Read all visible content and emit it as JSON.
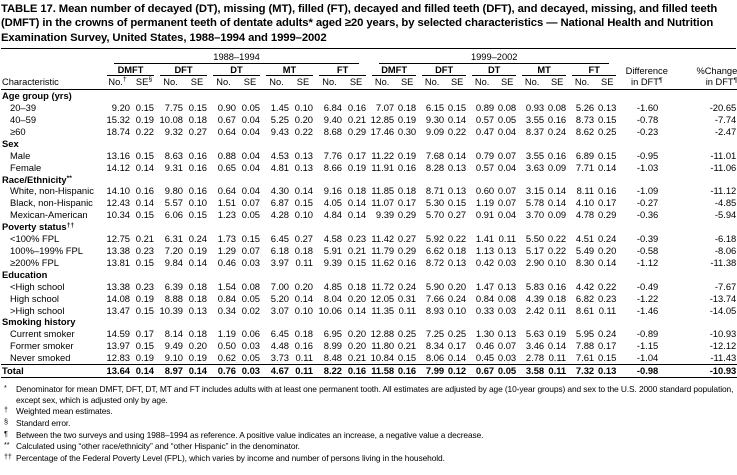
{
  "title": "TABLE 17. Mean number of decayed (DT), missing (MT), filled (FT), decayed and filled teeth (DFT), and decayed, missing, and filled teeth (DMFT) in the crowns of permanent teeth of dentate adults* aged ≥20 years, by selected characteristics — National Health and Nutrition Examination Survey, United States, 1988–1994 and 1999–2002",
  "header": {
    "characteristic": "Characteristic",
    "periods": [
      "1988–1994",
      "1999–2002"
    ],
    "groups": [
      "DMFT",
      "DFT",
      "DT",
      "MT",
      "FT"
    ],
    "no_label": "No.",
    "se_label": "SE",
    "no_sup": "†",
    "se_sup": "§",
    "diff_lines": [
      "Difference",
      "in DFT"
    ],
    "change_lines": [
      "%Change",
      "in DFT"
    ],
    "dft_sup": "¶"
  },
  "sections": [
    {
      "label": "Age group (yrs)",
      "sup": "",
      "rows": [
        {
          "label": "20–39",
          "values": [
            "9.20",
            "0.15",
            "7.75",
            "0.15",
            "0.90",
            "0.05",
            "1.45",
            "0.10",
            "6.84",
            "0.16",
            "7.07",
            "0.18",
            "6.15",
            "0.15",
            "0.89",
            "0.08",
            "0.93",
            "0.08",
            "5.26",
            "0.13",
            "-1.60",
            "-20.65"
          ]
        },
        {
          "label": "40–59",
          "values": [
            "15.32",
            "0.19",
            "10.08",
            "0.18",
            "0.67",
            "0.04",
            "5.25",
            "0.20",
            "9.40",
            "0.21",
            "12.85",
            "0.19",
            "9.30",
            "0.14",
            "0.57",
            "0.05",
            "3.55",
            "0.16",
            "8.73",
            "0.15",
            "-0.78",
            "-7.74"
          ]
        },
        {
          "label": "≥60",
          "values": [
            "18.74",
            "0.22",
            "9.32",
            "0.27",
            "0.64",
            "0.04",
            "9.43",
            "0.22",
            "8.68",
            "0.29",
            "17.46",
            "0.30",
            "9.09",
            "0.22",
            "0.47",
            "0.04",
            "8.37",
            "0.24",
            "8.62",
            "0.25",
            "-0.23",
            "-2.47"
          ]
        }
      ]
    },
    {
      "label": "Sex",
      "sup": "",
      "rows": [
        {
          "label": "Male",
          "values": [
            "13.16",
            "0.15",
            "8.63",
            "0.16",
            "0.88",
            "0.04",
            "4.53",
            "0.13",
            "7.76",
            "0.17",
            "11.22",
            "0.19",
            "7.68",
            "0.14",
            "0.79",
            "0.07",
            "3.55",
            "0.16",
            "6.89",
            "0.15",
            "-0.95",
            "-11.01"
          ]
        },
        {
          "label": "Female",
          "values": [
            "14.12",
            "0.14",
            "9.31",
            "0.16",
            "0.65",
            "0.04",
            "4.81",
            "0.13",
            "8.66",
            "0.19",
            "11.91",
            "0.16",
            "8.28",
            "0.13",
            "0.57",
            "0.04",
            "3.63",
            "0.09",
            "7.71",
            "0.14",
            "-1.03",
            "-11.06"
          ]
        }
      ]
    },
    {
      "label": "Race/Ethnicity",
      "sup": "**",
      "rows": [
        {
          "label": "White, non-Hispanic",
          "values": [
            "14.10",
            "0.16",
            "9.80",
            "0.16",
            "0.64",
            "0.04",
            "4.30",
            "0.14",
            "9.16",
            "0.18",
            "11.85",
            "0.18",
            "8.71",
            "0.13",
            "0.60",
            "0.07",
            "3.15",
            "0.14",
            "8.11",
            "0.16",
            "-1.09",
            "-11.12"
          ]
        },
        {
          "label": "Black, non-Hispanic",
          "values": [
            "12.43",
            "0.14",
            "5.57",
            "0.10",
            "1.51",
            "0.07",
            "6.87",
            "0.15",
            "4.05",
            "0.14",
            "11.07",
            "0.17",
            "5.30",
            "0.15",
            "1.19",
            "0.07",
            "5.78",
            "0.14",
            "4.10",
            "0.17",
            "-0.27",
            "-4.85"
          ]
        },
        {
          "label": "Mexican-American",
          "values": [
            "10.34",
            "0.15",
            "6.06",
            "0.15",
            "1.23",
            "0.05",
            "4.28",
            "0.10",
            "4.84",
            "0.14",
            "9.39",
            "0.29",
            "5.70",
            "0.27",
            "0.91",
            "0.04",
            "3.70",
            "0.09",
            "4.78",
            "0.29",
            "-0.36",
            "-5.94"
          ]
        }
      ]
    },
    {
      "label": "Poverty status",
      "sup": "††",
      "rows": [
        {
          "label": "<100% FPL",
          "values": [
            "12.75",
            "0.21",
            "6.31",
            "0.24",
            "1.73",
            "0.15",
            "6.45",
            "0.27",
            "4.58",
            "0.23",
            "11.42",
            "0.27",
            "5.92",
            "0.22",
            "1.41",
            "0.11",
            "5.50",
            "0.22",
            "4.51",
            "0.24",
            "-0.39",
            "-6.18"
          ]
        },
        {
          "label": "100%–199% FPL",
          "values": [
            "13.38",
            "0.23",
            "7.20",
            "0.19",
            "1.29",
            "0.07",
            "6.18",
            "0.18",
            "5.91",
            "0.21",
            "11.79",
            "0.29",
            "6.62",
            "0.18",
            "1.13",
            "0.13",
            "5.17",
            "0.22",
            "5.49",
            "0.20",
            "-0.58",
            "-8.06"
          ]
        },
        {
          "label": "≥200% FPL",
          "values": [
            "13.81",
            "0.15",
            "9.84",
            "0.14",
            "0.46",
            "0.03",
            "3.97",
            "0.11",
            "9.39",
            "0.15",
            "11.62",
            "0.16",
            "8.72",
            "0.13",
            "0.42",
            "0.03",
            "2.90",
            "0.10",
            "8.30",
            "0.14",
            "-1.12",
            "-11.38"
          ]
        }
      ]
    },
    {
      "label": "Education",
      "sup": "",
      "rows": [
        {
          "label": "<High school",
          "values": [
            "13.38",
            "0.23",
            "6.39",
            "0.18",
            "1.54",
            "0.08",
            "7.00",
            "0.20",
            "4.85",
            "0.18",
            "11.72",
            "0.24",
            "5.90",
            "0.20",
            "1.47",
            "0.13",
            "5.83",
            "0.16",
            "4.42",
            "0.22",
            "-0.49",
            "-7.67"
          ]
        },
        {
          "label": "High school",
          "values": [
            "14.08",
            "0.19",
            "8.88",
            "0.18",
            "0.84",
            "0.05",
            "5.20",
            "0.14",
            "8.04",
            "0.20",
            "12.05",
            "0.31",
            "7.66",
            "0.24",
            "0.84",
            "0.08",
            "4.39",
            "0.18",
            "6.82",
            "0.23",
            "-1.22",
            "-13.74"
          ]
        },
        {
          "label": ">High school",
          "values": [
            "13.47",
            "0.15",
            "10.39",
            "0.13",
            "0.34",
            "0.02",
            "3.07",
            "0.10",
            "10.06",
            "0.14",
            "11.35",
            "0.11",
            "8.93",
            "0.10",
            "0.33",
            "0.03",
            "2.42",
            "0.11",
            "8.61",
            "0.11",
            "-1.46",
            "-14.05"
          ]
        }
      ]
    },
    {
      "label": "Smoking history",
      "sup": "",
      "rows": [
        {
          "label": "Current smoker",
          "values": [
            "14.59",
            "0.17",
            "8.14",
            "0.18",
            "1.19",
            "0.06",
            "6.45",
            "0.18",
            "6.95",
            "0.20",
            "12.88",
            "0.25",
            "7.25",
            "0.25",
            "1.30",
            "0.13",
            "5.63",
            "0.19",
            "5.95",
            "0.24",
            "-0.89",
            "-10.93"
          ]
        },
        {
          "label": "Former smoker",
          "values": [
            "13.97",
            "0.15",
            "9.49",
            "0.20",
            "0.50",
            "0.03",
            "4.48",
            "0.16",
            "8.99",
            "0.20",
            "11.80",
            "0.21",
            "8.34",
            "0.17",
            "0.46",
            "0.07",
            "3.46",
            "0.14",
            "7.88",
            "0.17",
            "-1.15",
            "-12.12"
          ]
        },
        {
          "label": "Never smoked",
          "values": [
            "12.83",
            "0.19",
            "9.10",
            "0.19",
            "0.62",
            "0.05",
            "3.73",
            "0.11",
            "8.48",
            "0.21",
            "10.84",
            "0.15",
            "8.06",
            "0.14",
            "0.45",
            "0.03",
            "2.78",
            "0.11",
            "7.61",
            "0.15",
            "-1.04",
            "-11.43"
          ]
        }
      ]
    }
  ],
  "total": {
    "label": "Total",
    "values": [
      "13.64",
      "0.14",
      "8.97",
      "0.14",
      "0.76",
      "0.03",
      "4.67",
      "0.11",
      "8.22",
      "0.16",
      "11.58",
      "0.16",
      "7.99",
      "0.12",
      "0.67",
      "0.05",
      "3.58",
      "0.11",
      "7.32",
      "0.13",
      "-0.98",
      "-10.93"
    ]
  },
  "footnotes": [
    {
      "symbol": "*",
      "text": "Denominator for mean DMFT, DFT, DT, MT and FT includes adults with at least one permanent tooth. All estimates are adjusted by age (10-year groups) and sex to the U.S. 2000 standard population, except sex, which is adjusted only by age."
    },
    {
      "symbol": "†",
      "text": "Weighted mean estimates."
    },
    {
      "symbol": "§",
      "text": "Standard error."
    },
    {
      "symbol": "¶",
      "text": "Between the two surveys and using 1988–1994 as reference. A positive value indicates an increase, a negative value a decrease."
    },
    {
      "symbol": "**",
      "text": "Calculated using “other race/ethnicity” and “other Hispanic” in the denominator."
    },
    {
      "symbol": "††",
      "text": "Percentage of the Federal Poverty Level (FPL), which varies by income and number of persons living in the household."
    }
  ]
}
